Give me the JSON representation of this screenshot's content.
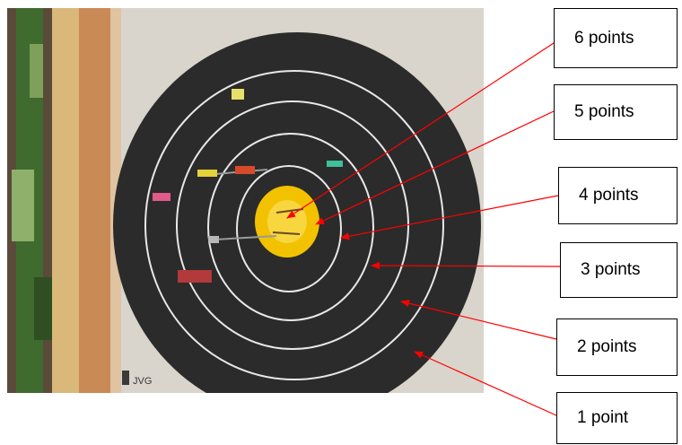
{
  "labels": [
    {
      "text": "6 points"
    },
    {
      "text": "5 points"
    },
    {
      "text": "4 points"
    },
    {
      "text": "3 points"
    },
    {
      "text": "2 points"
    },
    {
      "text": "1 point"
    }
  ],
  "photo": {
    "watermark": "JVG"
  },
  "colors": {
    "target_face": "#2b2b2b",
    "ring_lines": "#e8e8e8",
    "bullseye": "#f2c200",
    "arrow": "#ff0000",
    "wood": "#c98a55",
    "background_board": "#d9d4cc"
  }
}
